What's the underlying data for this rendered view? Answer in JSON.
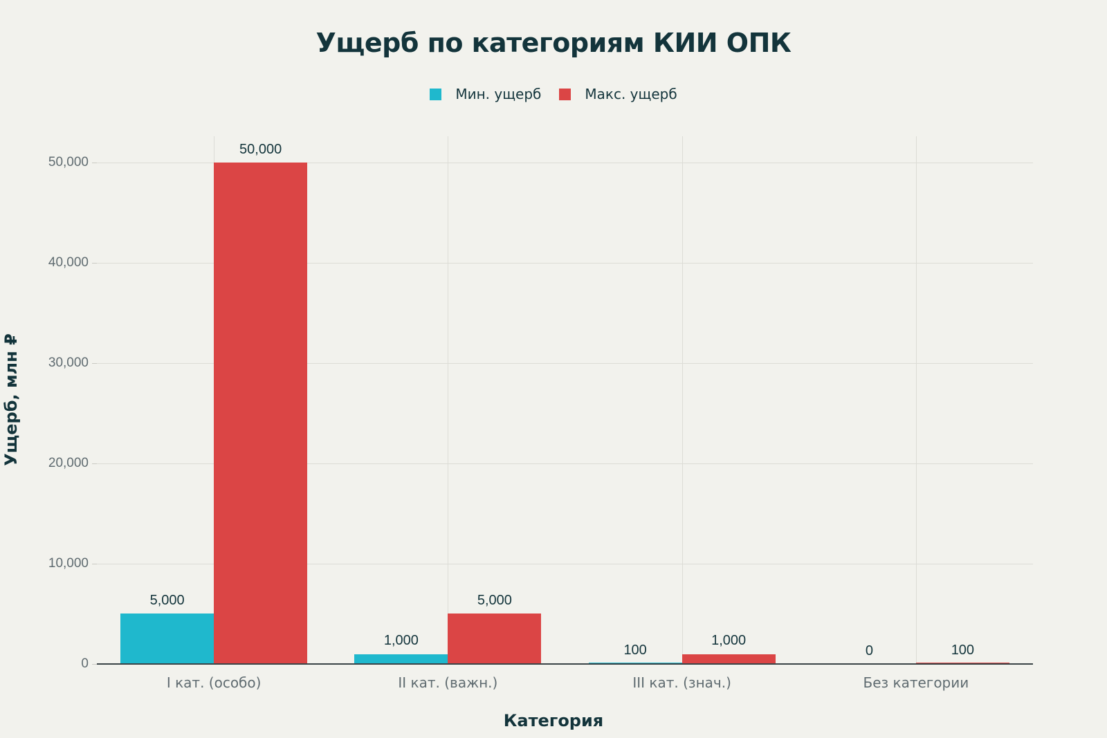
{
  "chart_data": {
    "type": "bar",
    "title": "Ущерб по категориям КИИ ОПК",
    "xlabel": "Категория",
    "ylabel": "Ущерб, млн ₽",
    "categories": [
      "I кат. (особо)",
      "II кат. (важн.)",
      "III кат. (знач.)",
      "Без категории"
    ],
    "series": [
      {
        "name": "Мин. ущерб",
        "color": "#1fb8cd",
        "values": [
          5000,
          1000,
          100,
          0
        ],
        "labels": [
          "5,000",
          "1,000",
          "100",
          "0"
        ]
      },
      {
        "name": "Макс. ущерб",
        "color": "#db4545",
        "values": [
          50000,
          5000,
          1000,
          100
        ],
        "labels": [
          "50,000",
          "5,000",
          "1,000",
          "100"
        ]
      }
    ],
    "ylim": [
      0,
      52600
    ],
    "yticks": [
      0,
      10000,
      20000,
      30000,
      40000,
      50000
    ],
    "ytick_labels": [
      "0",
      "10,000",
      "20,000",
      "30,000",
      "40,000",
      "50,000"
    ],
    "grid": true,
    "legend_position": "top-center"
  }
}
